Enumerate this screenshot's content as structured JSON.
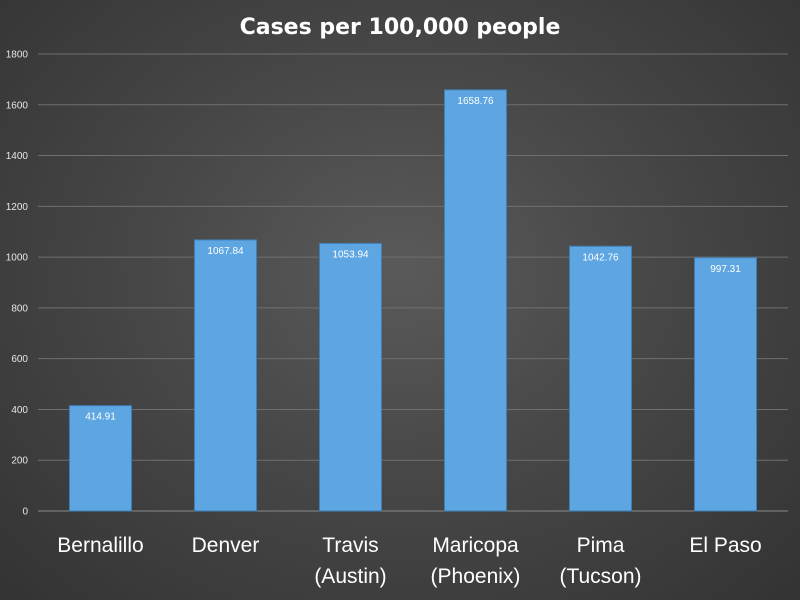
{
  "chart_data": {
    "type": "bar",
    "title": "Cases per 100,000 people",
    "xlabel": "",
    "ylabel": "",
    "ylim": [
      0,
      1800
    ],
    "yticks": [
      0,
      200,
      400,
      600,
      800,
      1000,
      1200,
      1400,
      1600,
      1800
    ],
    "grid": true,
    "categories": [
      [
        "Bernalillo"
      ],
      [
        "Denver"
      ],
      [
        "Travis",
        "(Austin)"
      ],
      [
        "Maricopa",
        "(Phoenix)"
      ],
      [
        "Pima",
        "(Tucson)"
      ],
      [
        "El Paso"
      ]
    ],
    "values": [
      414.91,
      1067.84,
      1053.94,
      1658.76,
      1042.76,
      997.31
    ],
    "data_labels": [
      "414.91",
      "1067.84",
      "1053.94",
      "1658.76",
      "1042.76",
      "997.31"
    ],
    "colors": {
      "bar": "#5da6e2",
      "bar_edge": "#3f7fb8",
      "text": "#ffffff",
      "grid": "#6f6f6f"
    }
  }
}
